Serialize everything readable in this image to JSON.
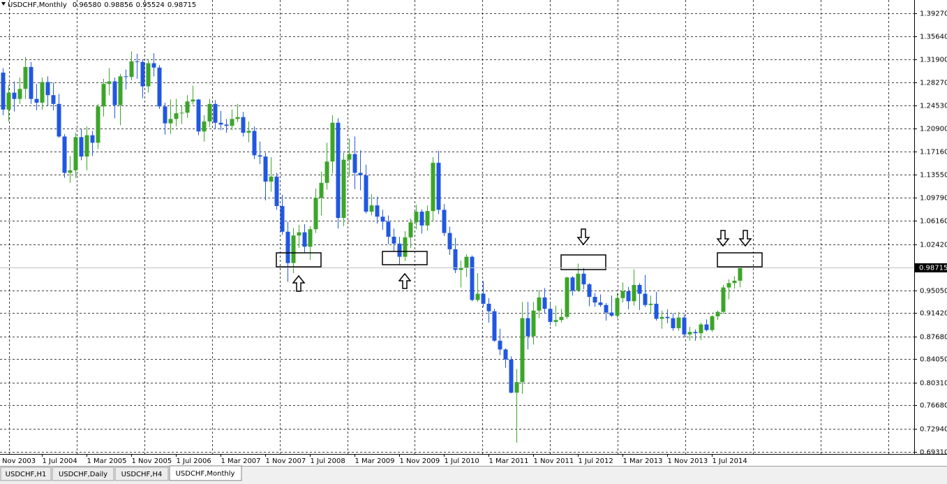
{
  "chart_data": {
    "type": "candlestick",
    "title": "USDCHF,Monthly",
    "quote_labels": [
      "0.96580",
      "0.98856",
      "0.95524",
      "0.98715"
    ],
    "up_color": "#3ca529",
    "down_color": "#2157e0",
    "grid": true,
    "current_price": {
      "value": 0.98715,
      "label": "0.98715"
    },
    "xlim": [
      -0.5,
      163.25
    ],
    "ylim": [
      0.6892,
      1.4139
    ],
    "xticks": [
      {
        "value": -1,
        "label": "Nov 2003"
      },
      {
        "value": 7,
        "label": "1 Jul 2004"
      },
      {
        "value": 15,
        "label": "1 Mar 2005"
      },
      {
        "value": 23,
        "label": "1 Nov 2005"
      },
      {
        "value": 31,
        "label": "1 Jul 2006"
      },
      {
        "value": 39,
        "label": "1 Mar 2007"
      },
      {
        "value": 47,
        "label": "1 Nov 2007"
      },
      {
        "value": 55,
        "label": "1 Jul 2008"
      },
      {
        "value": 63,
        "label": "1 Mar 2009"
      },
      {
        "value": 71,
        "label": "1 Nov 2009"
      },
      {
        "value": 79,
        "label": "1 Jul 2010"
      },
      {
        "value": 87,
        "label": "1 Mar 2011"
      },
      {
        "value": 95,
        "label": "1 Nov 2011"
      },
      {
        "value": 103,
        "label": "1 Jul 2012"
      },
      {
        "value": 111,
        "label": "1 Mar 2013"
      },
      {
        "value": 119,
        "label": "1 Nov 2013"
      },
      {
        "value": 127,
        "label": "1 Jul 2014"
      }
    ],
    "yticks": [
      {
        "value": 1.3927,
        "label": "1.39270"
      },
      {
        "value": 1.3564,
        "label": "1.35640"
      },
      {
        "value": 1.319,
        "label": "1.31900"
      },
      {
        "value": 1.2827,
        "label": "1.28270"
      },
      {
        "value": 1.2453,
        "label": "1.24530"
      },
      {
        "value": 1.209,
        "label": "1.20900"
      },
      {
        "value": 1.1716,
        "label": "1.17160"
      },
      {
        "value": 1.1355,
        "label": "1.13550"
      },
      {
        "value": 1.0979,
        "label": "1.09790"
      },
      {
        "value": 1.0616,
        "label": "1.06160"
      },
      {
        "value": 1.0242,
        "label": "1.02420"
      },
      {
        "value": 0.9505,
        "label": "0.95050"
      },
      {
        "value": 0.9142,
        "label": "0.91420"
      },
      {
        "value": 0.8768,
        "label": "0.87680"
      },
      {
        "value": 0.8405,
        "label": "0.84050"
      },
      {
        "value": 0.8031,
        "label": "0.80310"
      },
      {
        "value": 0.7668,
        "label": "0.76680"
      },
      {
        "value": 0.7294,
        "label": "0.72940"
      },
      {
        "value": 0.6931,
        "label": "0.69310"
      }
    ],
    "open": [
      1.298,
      1.239,
      1.266,
      1.256,
      1.272,
      1.307,
      1.256,
      1.25,
      1.283,
      1.262,
      1.248,
      1.196,
      1.138,
      1.142,
      1.195,
      1.164,
      1.198,
      1.186,
      1.244,
      1.28,
      1.284,
      1.246,
      1.292,
      1.291,
      1.316,
      1.315,
      1.276,
      1.313,
      1.306,
      1.244,
      1.217,
      1.224,
      1.233,
      1.234,
      1.252,
      1.255,
      1.204,
      1.22,
      1.248,
      1.218,
      1.215,
      1.213,
      1.224,
      1.227,
      1.202,
      1.205,
      1.166,
      1.164,
      1.124,
      1.132,
      1.085,
      1.044,
      0.994,
      1.038,
      1.043,
      1.02,
      1.048,
      1.098,
      1.122,
      1.156,
      1.218,
      1.066,
      1.159,
      1.168,
      1.138,
      1.134,
      1.076,
      1.086,
      1.068,
      1.06,
      1.036,
      1.025,
      1.004,
      1.035,
      1.059,
      1.076,
      1.054,
      1.077,
      1.154,
      1.079,
      1.042,
      1.016,
      0.983,
      0.986,
      1.004,
      0.935,
      0.945,
      0.929,
      0.917,
      0.87,
      0.856,
      0.84,
      0.787,
      0.804,
      0.906,
      0.877,
      0.918,
      0.939,
      0.921,
      0.9,
      0.903,
      0.908,
      0.971,
      0.95,
      0.977,
      0.96,
      0.94,
      0.931,
      0.927,
      0.915,
      0.91,
      0.938,
      0.949,
      0.933,
      0.959,
      0.945,
      0.927,
      0.929,
      0.905,
      0.908,
      0.906,
      0.89,
      0.907,
      0.88,
      0.884,
      0.882,
      0.896,
      0.887,
      0.909,
      0.916,
      0.955,
      0.962,
      0.9658
    ],
    "high": [
      1.305,
      1.278,
      1.284,
      1.29,
      1.323,
      1.315,
      1.28,
      1.29,
      1.292,
      1.282,
      1.264,
      1.2,
      1.165,
      1.202,
      1.208,
      1.212,
      1.205,
      1.248,
      1.288,
      1.305,
      1.29,
      1.296,
      1.303,
      1.332,
      1.328,
      1.318,
      1.32,
      1.329,
      1.31,
      1.25,
      1.255,
      1.256,
      1.246,
      1.262,
      1.277,
      1.256,
      1.23,
      1.256,
      1.254,
      1.237,
      1.224,
      1.239,
      1.248,
      1.235,
      1.22,
      1.212,
      1.188,
      1.17,
      1.163,
      1.138,
      1.103,
      1.06,
      1.05,
      1.055,
      1.056,
      1.053,
      1.113,
      1.14,
      1.186,
      1.23,
      1.225,
      1.17,
      1.193,
      1.196,
      1.174,
      1.151,
      1.104,
      1.1,
      1.079,
      1.07,
      1.049,
      1.036,
      1.045,
      1.065,
      1.087,
      1.08,
      1.086,
      1.163,
      1.173,
      1.088,
      1.052,
      1.034,
      0.998,
      1.008,
      1.006,
      0.978,
      0.965,
      0.938,
      0.921,
      0.889,
      0.858,
      0.845,
      0.825,
      0.932,
      0.932,
      0.932,
      0.951,
      0.954,
      0.931,
      0.926,
      0.921,
      0.972,
      0.973,
      0.993,
      0.986,
      0.962,
      0.946,
      0.944,
      0.93,
      0.942,
      0.946,
      0.963,
      0.956,
      0.984,
      0.962,
      0.975,
      0.942,
      0.948,
      0.918,
      0.92,
      0.914,
      0.916,
      0.912,
      0.892,
      0.888,
      0.899,
      0.904,
      0.911,
      0.918,
      0.959,
      0.968,
      0.973,
      0.98856
    ],
    "low": [
      1.23,
      1.22,
      1.236,
      1.248,
      1.256,
      1.248,
      1.238,
      1.239,
      1.245,
      1.238,
      1.194,
      1.13,
      1.122,
      1.13,
      1.158,
      1.142,
      1.165,
      1.176,
      1.228,
      1.262,
      1.225,
      1.214,
      1.271,
      1.286,
      1.288,
      1.257,
      1.266,
      1.292,
      1.24,
      1.199,
      1.2,
      1.212,
      1.216,
      1.226,
      1.247,
      1.198,
      1.188,
      1.211,
      1.208,
      1.206,
      1.202,
      1.206,
      1.219,
      1.196,
      1.187,
      1.16,
      1.152,
      1.094,
      1.108,
      1.079,
      1.039,
      0.964,
      0.978,
      1.018,
      1.01,
      0.999,
      1.042,
      1.07,
      1.111,
      1.137,
      1.049,
      1.053,
      1.132,
      1.112,
      1.11,
      1.073,
      1.07,
      1.057,
      1.047,
      1.024,
      1.013,
      0.991,
      0.997,
      1.018,
      1.048,
      1.041,
      1.046,
      1.062,
      1.072,
      1.037,
      1.007,
      0.978,
      0.955,
      0.972,
      0.933,
      0.932,
      0.924,
      0.899,
      0.868,
      0.847,
      0.827,
      0.786,
      0.707,
      0.785,
      0.856,
      0.864,
      0.906,
      0.913,
      0.894,
      0.893,
      0.899,
      0.905,
      0.942,
      0.948,
      0.952,
      0.925,
      0.924,
      0.924,
      0.902,
      0.908,
      0.906,
      0.931,
      0.92,
      0.926,
      0.919,
      0.924,
      0.913,
      0.902,
      0.889,
      0.898,
      0.886,
      0.886,
      0.875,
      0.87,
      0.87,
      0.871,
      0.885,
      0.884,
      0.903,
      0.913,
      0.936,
      0.953,
      0.95524
    ],
    "close": [
      1.239,
      1.266,
      1.256,
      1.272,
      1.307,
      1.256,
      1.25,
      1.283,
      1.262,
      1.248,
      1.196,
      1.138,
      1.142,
      1.195,
      1.164,
      1.198,
      1.186,
      1.244,
      1.28,
      1.284,
      1.246,
      1.292,
      1.291,
      1.316,
      1.315,
      1.276,
      1.313,
      1.306,
      1.244,
      1.217,
      1.224,
      1.233,
      1.234,
      1.252,
      1.255,
      1.204,
      1.22,
      1.248,
      1.218,
      1.215,
      1.213,
      1.224,
      1.227,
      1.202,
      1.205,
      1.166,
      1.164,
      1.124,
      1.132,
      1.085,
      1.044,
      0.994,
      1.038,
      1.043,
      1.02,
      1.048,
      1.098,
      1.122,
      1.156,
      1.218,
      1.066,
      1.159,
      1.168,
      1.138,
      1.134,
      1.076,
      1.086,
      1.068,
      1.06,
      1.036,
      1.025,
      1.004,
      1.035,
      1.059,
      1.076,
      1.054,
      1.077,
      1.154,
      1.079,
      1.042,
      1.016,
      0.983,
      0.986,
      1.004,
      0.935,
      0.945,
      0.929,
      0.917,
      0.87,
      0.856,
      0.84,
      0.787,
      0.804,
      0.906,
      0.877,
      0.918,
      0.939,
      0.921,
      0.9,
      0.903,
      0.908,
      0.971,
      0.95,
      0.977,
      0.96,
      0.94,
      0.931,
      0.927,
      0.915,
      0.91,
      0.938,
      0.949,
      0.933,
      0.959,
      0.945,
      0.927,
      0.929,
      0.905,
      0.908,
      0.906,
      0.89,
      0.907,
      0.88,
      0.884,
      0.882,
      0.896,
      0.887,
      0.909,
      0.916,
      0.955,
      0.962,
      0.9658,
      0.98715
    ]
  },
  "tabs": [
    "USDCHF,H1",
    "USDCHF,Daily",
    "USDCHF,H4",
    "USDCHF,Monthly"
  ]
}
